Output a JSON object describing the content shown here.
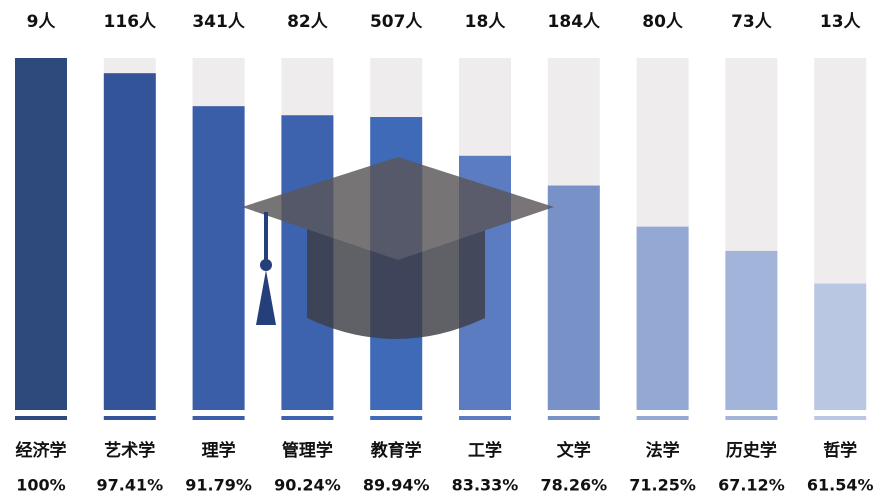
{
  "chart_data": {
    "type": "bar",
    "categories": [
      "经济学",
      "艺术学",
      "理学",
      "管理学",
      "教育学",
      "工学",
      "文学",
      "法学",
      "历史学",
      "哲学"
    ],
    "count_labels": [
      "9人",
      "116人",
      "341人",
      "82人",
      "507人",
      "18人",
      "184人",
      "80人",
      "73人",
      "13人"
    ],
    "values": [
      100,
      97.41,
      91.79,
      90.24,
      89.94,
      83.33,
      78.26,
      71.25,
      67.12,
      61.54
    ],
    "value_labels": [
      "100%",
      "97.41%",
      "91.79%",
      "90.24%",
      "89.94%",
      "83.33%",
      "78.26%",
      "71.25%",
      "67.12%",
      "61.54%"
    ],
    "colors": [
      "#2e4a7d",
      "#34549a",
      "#3a5ea8",
      "#3d63af",
      "#3f6ab7",
      "#5b7cc0",
      "#7892c8",
      "#93a8d3",
      "#a3b4da",
      "#bac7e3"
    ],
    "track_color": "#eeeced",
    "ylim": [
      40,
      100
    ]
  }
}
